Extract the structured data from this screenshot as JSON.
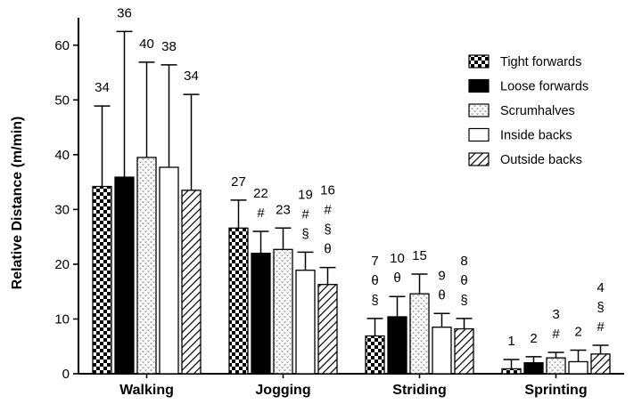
{
  "chart_data": {
    "type": "bar",
    "title": "",
    "xlabel": "",
    "ylabel": "Relative Distance (m/min)",
    "ylim": [
      0,
      65
    ],
    "yticks": [
      "0",
      "10",
      "20",
      "30",
      "40",
      "50",
      "60"
    ],
    "categories": [
      "Walking",
      "Jogging",
      "Striding",
      "Sprinting"
    ],
    "legend_position": "top-right",
    "series": [
      {
        "name": "Tight forwards",
        "pattern": "checker",
        "values": [
          34.2,
          26.6,
          6.9,
          0.9
        ],
        "errors": [
          14.7,
          5.1,
          3.2,
          1.7
        ],
        "labels": [
          "34",
          "27",
          "7",
          "1"
        ],
        "annotations": [
          [],
          [],
          [
            "θ",
            "§"
          ],
          []
        ]
      },
      {
        "name": "Loose forwards",
        "pattern": "solid",
        "values": [
          35.9,
          22.0,
          10.4,
          2.0
        ],
        "errors": [
          26.6,
          4.0,
          3.7,
          1.1
        ],
        "labels": [
          "36",
          "22",
          "10",
          "2"
        ],
        "annotations": [
          [],
          [
            "#"
          ],
          [
            "θ"
          ],
          []
        ]
      },
      {
        "name": "Scrumhalves",
        "pattern": "dots",
        "values": [
          39.5,
          22.7,
          14.6,
          2.9
        ],
        "errors": [
          17.4,
          3.9,
          3.6,
          1.0
        ],
        "labels": [
          "40",
          "23",
          "15",
          "3"
        ],
        "annotations": [
          [],
          [],
          [],
          [
            "#"
          ]
        ]
      },
      {
        "name": "Inside backs",
        "pattern": "open",
        "values": [
          37.7,
          18.9,
          8.5,
          2.2
        ],
        "errors": [
          18.7,
          3.3,
          2.5,
          2.1
        ],
        "labels": [
          "38",
          "19",
          "9",
          "2"
        ],
        "annotations": [
          [],
          [
            "#",
            "§"
          ],
          [
            "θ"
          ],
          []
        ]
      },
      {
        "name": "Outside backs",
        "pattern": "hatch",
        "values": [
          33.5,
          16.3,
          8.2,
          3.6
        ],
        "errors": [
          17.5,
          3.1,
          1.9,
          1.6
        ],
        "labels": [
          "34",
          "16",
          "8",
          "4"
        ],
        "annotations": [
          [],
          [
            "#",
            "§",
            "θ"
          ],
          [
            "θ",
            "§"
          ],
          [
            "§",
            "#"
          ]
        ]
      }
    ]
  }
}
